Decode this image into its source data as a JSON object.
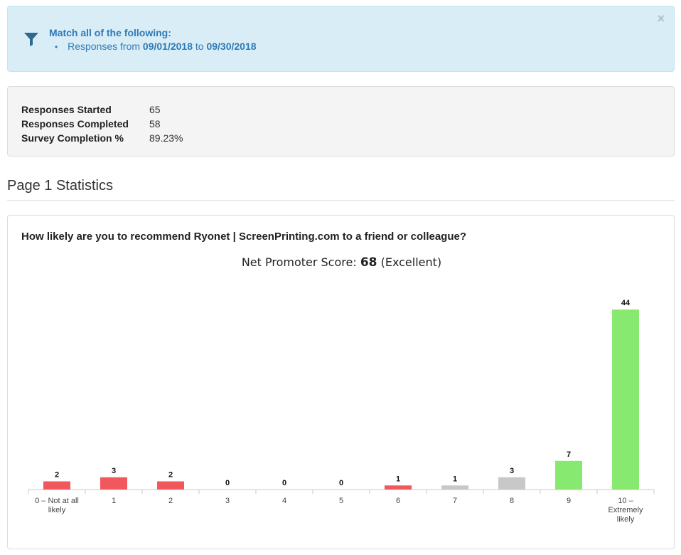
{
  "filter": {
    "title": "Match all of the following:",
    "prefix": "Responses from",
    "start": "09/01/2018",
    "connector": "to",
    "end": "09/30/2018",
    "close_label": "×"
  },
  "stats": [
    {
      "label": "Responses Started",
      "value": "65"
    },
    {
      "label": "Responses Completed",
      "value": "58"
    },
    {
      "label": "Survey Completion %",
      "value": "89.23%"
    }
  ],
  "page_heading": "Page 1 Statistics",
  "question": "How likely are you to recommend Ryonet | ScreenPrinting.com to a friend or colleague?",
  "nps": {
    "prefix": "Net Promoter Score:",
    "score": "68",
    "rating": "(Excellent)"
  },
  "colors": {
    "detractor": "#f0585e",
    "passive": "#c8c8c8",
    "promoter": "#87e96f"
  },
  "chart_data": {
    "type": "bar",
    "categories": [
      [
        "0 – Not at all",
        "likely"
      ],
      [
        "1"
      ],
      [
        "2"
      ],
      [
        "3"
      ],
      [
        "4"
      ],
      [
        "5"
      ],
      [
        "6"
      ],
      [
        "7"
      ],
      [
        "8"
      ],
      [
        "9"
      ],
      [
        "10 –",
        "Extremely",
        "likely"
      ]
    ],
    "values": [
      2,
      3,
      2,
      0,
      0,
      0,
      1,
      1,
      3,
      7,
      44
    ],
    "groups": [
      "detractor",
      "detractor",
      "detractor",
      "detractor",
      "detractor",
      "detractor",
      "detractor",
      "passive",
      "passive",
      "promoter",
      "promoter"
    ],
    "title": "",
    "xlabel": "",
    "ylabel": "",
    "ylim": [
      0,
      44
    ]
  }
}
